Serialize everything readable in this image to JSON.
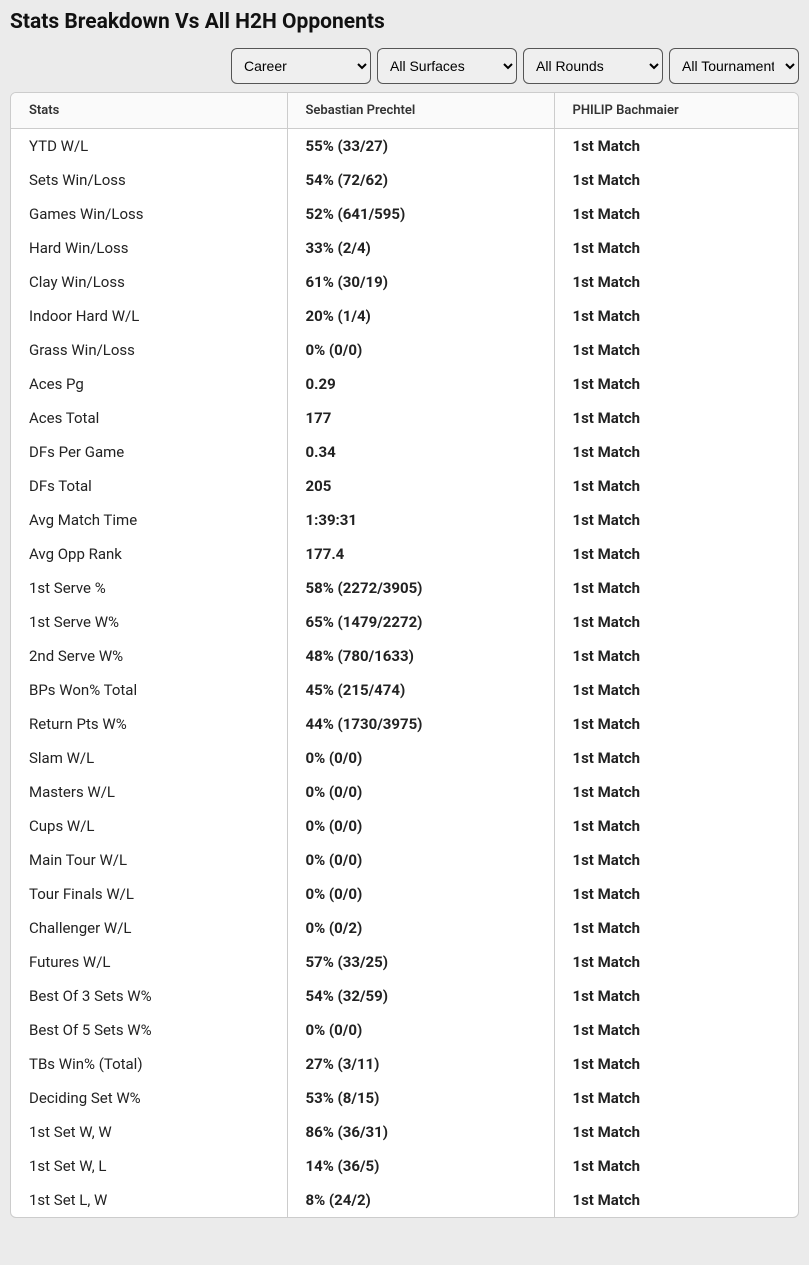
{
  "title": "Stats Breakdown Vs All H2H Opponents",
  "filters": {
    "career": "Career",
    "surfaces": "All Surfaces",
    "rounds": "All Rounds",
    "tournaments": "All Tournaments"
  },
  "columns": {
    "stats": "Stats",
    "player1": "Sebastian Prechtel",
    "player2": "PHILIP Bachmaier"
  },
  "rows": [
    {
      "stat": "YTD W/L",
      "p1": "55% (33/27)",
      "p2": "1st Match"
    },
    {
      "stat": "Sets Win/Loss",
      "p1": "54% (72/62)",
      "p2": "1st Match"
    },
    {
      "stat": "Games Win/Loss",
      "p1": "52% (641/595)",
      "p2": "1st Match"
    },
    {
      "stat": "Hard Win/Loss",
      "p1": "33% (2/4)",
      "p2": "1st Match"
    },
    {
      "stat": "Clay Win/Loss",
      "p1": "61% (30/19)",
      "p2": "1st Match"
    },
    {
      "stat": "Indoor Hard W/L",
      "p1": "20% (1/4)",
      "p2": "1st Match"
    },
    {
      "stat": "Grass Win/Loss",
      "p1": "0% (0/0)",
      "p2": "1st Match"
    },
    {
      "stat": "Aces Pg",
      "p1": "0.29",
      "p2": "1st Match"
    },
    {
      "stat": "Aces Total",
      "p1": "177",
      "p2": "1st Match"
    },
    {
      "stat": "DFs Per Game",
      "p1": "0.34",
      "p2": "1st Match"
    },
    {
      "stat": "DFs Total",
      "p1": "205",
      "p2": "1st Match"
    },
    {
      "stat": "Avg Match Time",
      "p1": "1:39:31",
      "p2": "1st Match"
    },
    {
      "stat": "Avg Opp Rank",
      "p1": "177.4",
      "p2": "1st Match"
    },
    {
      "stat": "1st Serve %",
      "p1": "58% (2272/3905)",
      "p2": "1st Match"
    },
    {
      "stat": "1st Serve W%",
      "p1": "65% (1479/2272)",
      "p2": "1st Match"
    },
    {
      "stat": "2nd Serve W%",
      "p1": "48% (780/1633)",
      "p2": "1st Match"
    },
    {
      "stat": "BPs Won% Total",
      "p1": "45% (215/474)",
      "p2": "1st Match"
    },
    {
      "stat": "Return Pts W%",
      "p1": "44% (1730/3975)",
      "p2": "1st Match"
    },
    {
      "stat": "Slam W/L",
      "p1": "0% (0/0)",
      "p2": "1st Match"
    },
    {
      "stat": "Masters W/L",
      "p1": "0% (0/0)",
      "p2": "1st Match"
    },
    {
      "stat": "Cups W/L",
      "p1": "0% (0/0)",
      "p2": "1st Match"
    },
    {
      "stat": "Main Tour W/L",
      "p1": "0% (0/0)",
      "p2": "1st Match"
    },
    {
      "stat": "Tour Finals W/L",
      "p1": "0% (0/0)",
      "p2": "1st Match"
    },
    {
      "stat": "Challenger W/L",
      "p1": "0% (0/2)",
      "p2": "1st Match"
    },
    {
      "stat": "Futures W/L",
      "p1": "57% (33/25)",
      "p2": "1st Match"
    },
    {
      "stat": "Best Of 3 Sets W%",
      "p1": "54% (32/59)",
      "p2": "1st Match"
    },
    {
      "stat": "Best Of 5 Sets W%",
      "p1": "0% (0/0)",
      "p2": "1st Match"
    },
    {
      "stat": "TBs Win% (Total)",
      "p1": "27% (3/11)",
      "p2": "1st Match"
    },
    {
      "stat": "Deciding Set W%",
      "p1": "53% (8/15)",
      "p2": "1st Match"
    },
    {
      "stat": "1st Set W, W",
      "p1": "86% (36/31)",
      "p2": "1st Match"
    },
    {
      "stat": "1st Set W, L",
      "p1": "14% (36/5)",
      "p2": "1st Match"
    },
    {
      "stat": "1st Set L, W",
      "p1": "8% (24/2)",
      "p2": "1st Match"
    }
  ]
}
